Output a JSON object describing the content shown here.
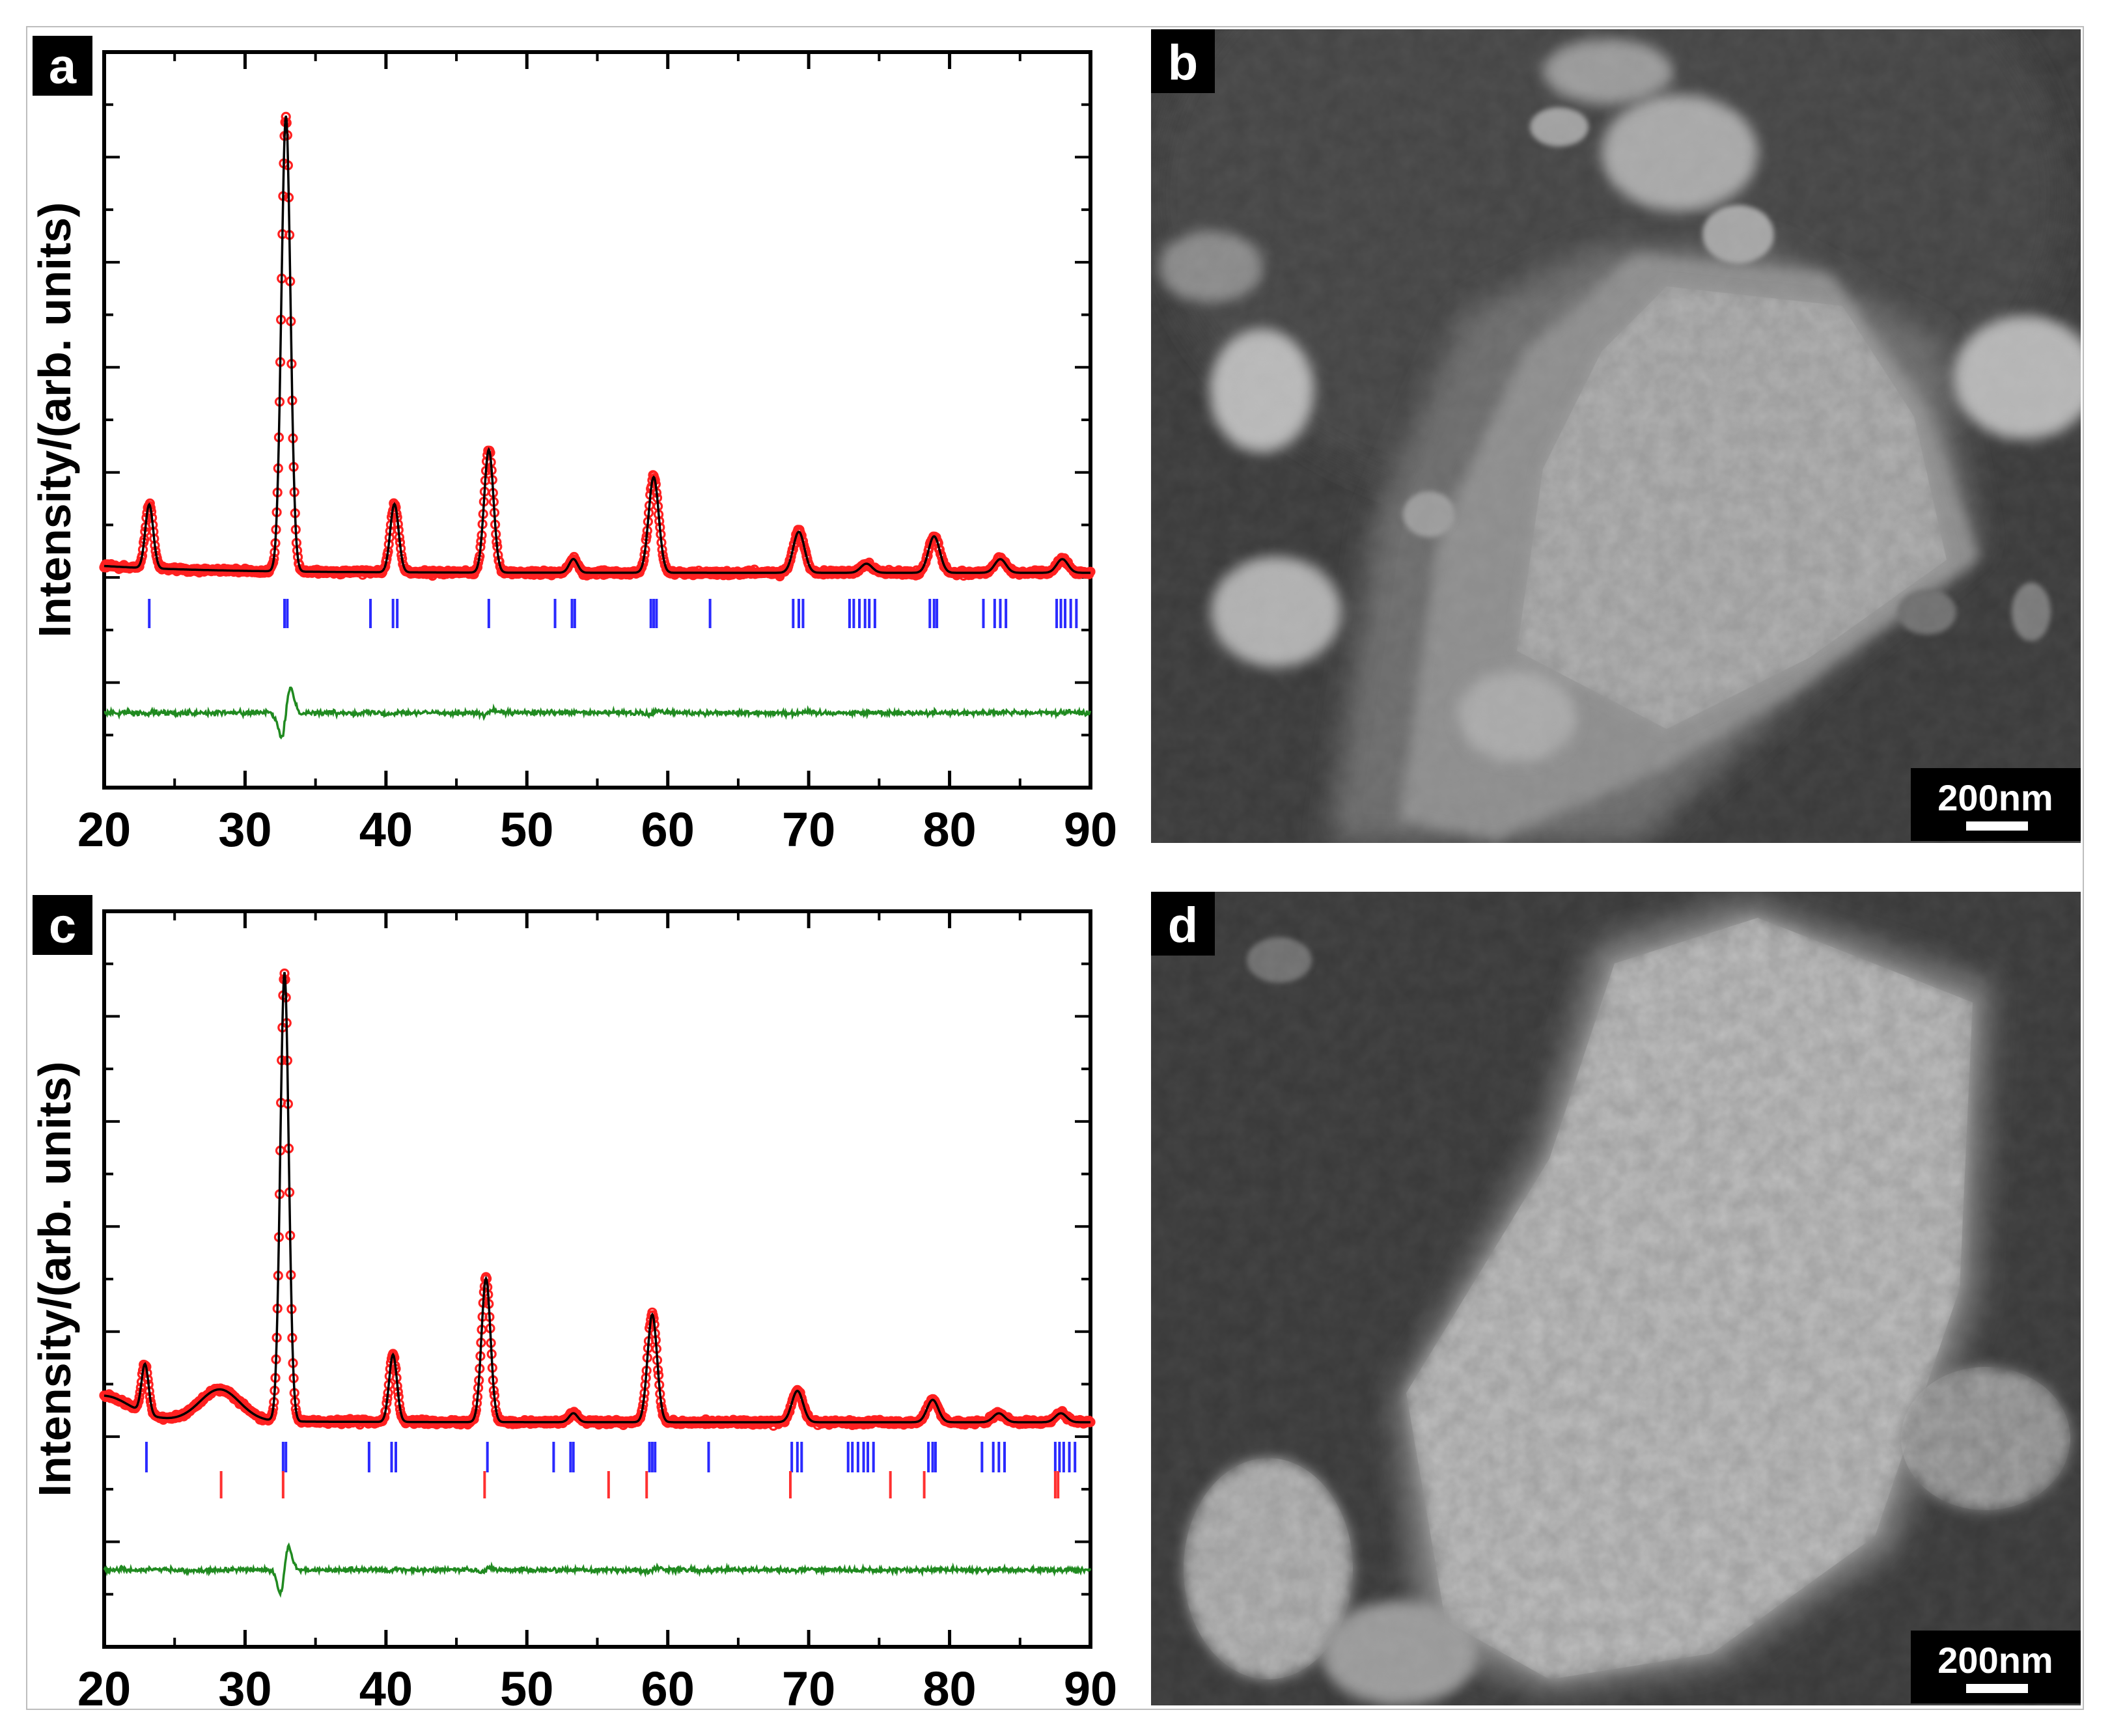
{
  "panels": {
    "a": {
      "label": "a"
    },
    "b": {
      "label": "b",
      "scale_bar": "200nm"
    },
    "c": {
      "label": "c"
    },
    "d": {
      "label": "d",
      "scale_bar": "200nm"
    }
  },
  "colors": {
    "observed": "#ff2020",
    "calculated": "#000000",
    "difference": "#208a20",
    "bragg_phase1": "#2a2aff",
    "bragg_phase2": "#ff3030",
    "sem_background": "#3a3a3a"
  },
  "chart_data": [
    {
      "panel": "a",
      "type": "line",
      "title": "",
      "xlabel": "",
      "ylabel": "Intensity/(arb. units)",
      "xlim": [
        20,
        90
      ],
      "xticks": [
        20,
        30,
        40,
        50,
        60,
        70,
        80,
        90
      ],
      "series": [
        {
          "role": "observed",
          "marker": "open-circle"
        },
        {
          "role": "calculated",
          "style": "line"
        },
        {
          "role": "difference",
          "style": "line"
        }
      ],
      "background_level": 0.1,
      "peaks": [
        {
          "x": 23.2,
          "h": 0.14,
          "w": 0.28
        },
        {
          "x": 32.9,
          "h": 1.0,
          "w": 0.32
        },
        {
          "x": 40.6,
          "h": 0.15,
          "w": 0.3
        },
        {
          "x": 47.3,
          "h": 0.27,
          "w": 0.33
        },
        {
          "x": 53.3,
          "h": 0.03,
          "w": 0.3
        },
        {
          "x": 59.0,
          "h": 0.21,
          "w": 0.36
        },
        {
          "x": 69.3,
          "h": 0.09,
          "w": 0.4
        },
        {
          "x": 74.1,
          "h": 0.02,
          "w": 0.4
        },
        {
          "x": 78.9,
          "h": 0.08,
          "w": 0.4
        },
        {
          "x": 83.6,
          "h": 0.03,
          "w": 0.4
        },
        {
          "x": 88.0,
          "h": 0.03,
          "w": 0.4
        }
      ],
      "bragg_phase1": [
        23.2,
        32.8,
        33.0,
        38.9,
        40.5,
        40.8,
        47.3,
        52.0,
        53.2,
        53.4,
        58.8,
        59.0,
        59.2,
        63.0,
        68.9,
        69.3,
        69.6,
        72.9,
        73.2,
        73.6,
        74.0,
        74.3,
        74.7,
        78.6,
        78.9,
        79.1,
        82.4,
        83.2,
        83.6,
        84.0,
        87.6,
        87.9,
        88.2,
        88.6,
        89.0
      ]
    },
    {
      "panel": "c",
      "type": "line",
      "title": "",
      "xlabel": "",
      "ylabel": "Intensity/(arb. units)",
      "xlim": [
        20,
        90
      ],
      "xticks": [
        20,
        30,
        40,
        50,
        60,
        70,
        80,
        90
      ],
      "series": [
        {
          "role": "observed",
          "marker": "open-circle"
        },
        {
          "role": "calculated",
          "style": "line"
        },
        {
          "role": "difference",
          "style": "line"
        }
      ],
      "background_level": 0.06,
      "peaks": [
        {
          "x": 20.0,
          "h": 0.05,
          "w": 1.8
        },
        {
          "x": 22.9,
          "h": 0.11,
          "w": 0.25
        },
        {
          "x": 28.2,
          "h": 0.07,
          "w": 1.4
        },
        {
          "x": 32.8,
          "h": 1.0,
          "w": 0.3
        },
        {
          "x": 40.5,
          "h": 0.15,
          "w": 0.28
        },
        {
          "x": 47.1,
          "h": 0.32,
          "w": 0.32
        },
        {
          "x": 53.3,
          "h": 0.02,
          "w": 0.3
        },
        {
          "x": 58.9,
          "h": 0.24,
          "w": 0.34
        },
        {
          "x": 69.2,
          "h": 0.07,
          "w": 0.4
        },
        {
          "x": 78.8,
          "h": 0.05,
          "w": 0.4
        },
        {
          "x": 83.5,
          "h": 0.02,
          "w": 0.4
        },
        {
          "x": 87.9,
          "h": 0.02,
          "w": 0.4
        }
      ],
      "bragg_phase1": [
        23.0,
        32.7,
        32.9,
        38.8,
        40.4,
        40.7,
        47.2,
        51.9,
        53.1,
        53.3,
        58.7,
        58.9,
        59.1,
        62.9,
        68.8,
        69.2,
        69.5,
        72.8,
        73.1,
        73.5,
        73.9,
        74.2,
        74.6,
        78.5,
        78.8,
        79.0,
        82.3,
        83.1,
        83.5,
        83.9,
        87.5,
        87.8,
        88.1,
        88.5,
        88.9
      ],
      "bragg_phase2": [
        28.3,
        32.7,
        47.0,
        55.8,
        58.5,
        68.7,
        75.8,
        78.2,
        87.5,
        87.7
      ]
    }
  ]
}
